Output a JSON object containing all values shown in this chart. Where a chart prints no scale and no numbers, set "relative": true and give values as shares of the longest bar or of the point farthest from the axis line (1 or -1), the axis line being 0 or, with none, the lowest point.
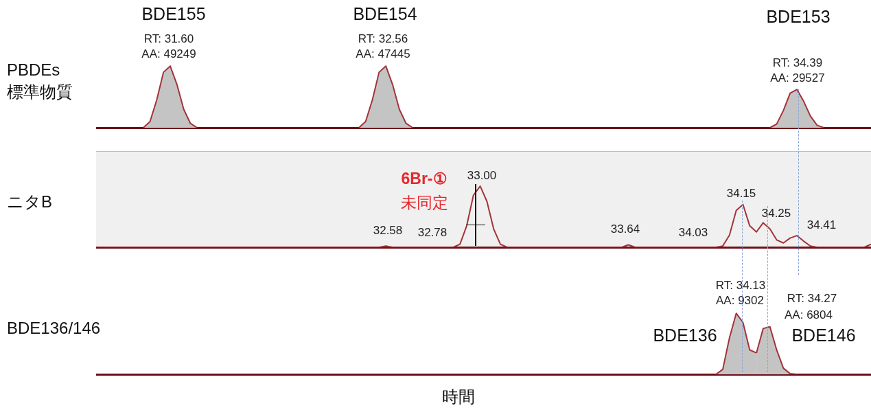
{
  "chart_data": [
    {
      "type": "area",
      "ylabel": "PBDEs\n標準物質",
      "relative": true,
      "categories": [
        null,
        null,
        null,
        null,
        null,
        null,
        null,
        null,
        null,
        null,
        null,
        null,
        null,
        null,
        null,
        null,
        null,
        null,
        null,
        null,
        null,
        null,
        null,
        null,
        null,
        null,
        null,
        null,
        null,
        null,
        null,
        null,
        null,
        null,
        null,
        null,
        null,
        null,
        null,
        null,
        null,
        null,
        null,
        null,
        null,
        null,
        null,
        null,
        null,
        null,
        null,
        null,
        null,
        null,
        null,
        null,
        null,
        null,
        null,
        null,
        null,
        null,
        null,
        null,
        null,
        null,
        null,
        null,
        null,
        null,
        null,
        null,
        null,
        null,
        null,
        null,
        null,
        null,
        null,
        null,
        null,
        null,
        null,
        null,
        null,
        null,
        null,
        null,
        null,
        null,
        null,
        null,
        null,
        null,
        null,
        null,
        null,
        null,
        null,
        null,
        null,
        null,
        null,
        null,
        null,
        null,
        null,
        null,
        null,
        null,
        null,
        null,
        null,
        null,
        null,
        null
      ],
      "series": [
        {
          "color": "#a3333a",
          "values": [
            null,
            null,
            null,
            null,
            null,
            null,
            null,
            0,
            0.1,
            0.45,
            0.9,
            1,
            0.7,
            0.3,
            0.07,
            0,
            null,
            null,
            null,
            null,
            null,
            null,
            null,
            null,
            null,
            null,
            null,
            null,
            null,
            null,
            null,
            null,
            null,
            null,
            null,
            null,
            null,
            null,
            null,
            null,
            null,
            null,
            null,
            null,
            null,
            null,
            null,
            null,
            null,
            null,
            null,
            null,
            null,
            null,
            null,
            null,
            null,
            null,
            null,
            null,
            null,
            null,
            null,
            null,
            null,
            null,
            null,
            null,
            null,
            null,
            null,
            null,
            null,
            null,
            null,
            null,
            null,
            null,
            null,
            null,
            null,
            null,
            null,
            null,
            null,
            null,
            null,
            null,
            null,
            null,
            null,
            null,
            null,
            null,
            null,
            null,
            null,
            null,
            null,
            null,
            null,
            null,
            null,
            null,
            null,
            null,
            null,
            null,
            null,
            null,
            null,
            null,
            null,
            null,
            null,
            null
          ]
        },
        {
          "color": "#a3333a",
          "values": [
            null,
            null,
            null,
            null,
            null,
            null,
            null,
            null,
            null,
            null,
            null,
            null,
            null,
            null,
            null,
            null,
            null,
            null,
            null,
            null,
            null,
            null,
            null,
            null,
            null,
            null,
            null,
            null,
            null,
            null,
            null,
            null,
            null,
            null,
            null,
            null,
            null,
            null,
            null,
            0,
            0.1,
            0.45,
            0.9,
            1,
            0.7,
            0.3,
            0.07,
            0,
            null,
            null,
            null,
            null,
            null,
            null,
            null,
            null,
            null,
            null,
            null,
            null,
            null,
            null,
            null,
            null,
            null,
            null,
            null,
            null,
            null,
            null,
            null,
            null,
            null,
            null,
            null,
            null,
            null,
            null,
            null,
            null,
            null,
            null,
            null,
            null,
            null,
            null,
            null,
            null,
            null,
            null,
            null,
            null,
            null,
            null,
            null,
            null,
            null,
            null,
            null,
            null,
            null,
            null,
            null,
            null,
            null,
            null,
            null,
            null,
            null,
            null,
            null,
            null,
            null,
            null,
            null,
            null
          ]
        },
        {
          "color": "#a3333a",
          "values": [
            null,
            null,
            null,
            null,
            null,
            null,
            null,
            null,
            null,
            null,
            null,
            null,
            null,
            null,
            null,
            null,
            null,
            null,
            null,
            null,
            null,
            null,
            null,
            null,
            null,
            null,
            null,
            null,
            null,
            null,
            null,
            null,
            null,
            null,
            null,
            null,
            null,
            null,
            null,
            null,
            null,
            null,
            null,
            null,
            null,
            null,
            null,
            null,
            null,
            null,
            null,
            null,
            null,
            null,
            null,
            null,
            null,
            null,
            null,
            null,
            null,
            null,
            null,
            null,
            null,
            null,
            null,
            null,
            null,
            null,
            null,
            null,
            null,
            null,
            null,
            null,
            null,
            null,
            null,
            null,
            null,
            null,
            null,
            null,
            null,
            null,
            null,
            null,
            null,
            null,
            null,
            null,
            null,
            null,
            null,
            null,
            null,
            null,
            null,
            null,
            0,
            0.06,
            0.28,
            0.56,
            0.62,
            0.43,
            0.19,
            0.04,
            0,
            null,
            null,
            null,
            null,
            null,
            null,
            null
          ]
        }
      ],
      "annotations": [
        "BDE155",
        "RT: 31.60",
        "AA: 49249",
        "BDE154",
        "RT: 32.56",
        "AA: 47445",
        "BDE153",
        "RT: 34.39",
        "AA: 29527"
      ]
    },
    {
      "type": "line",
      "ylabel": "ニタB",
      "relative": true,
      "categories": [
        null,
        null,
        null,
        null,
        null,
        null,
        null,
        null,
        null,
        null,
        null,
        null,
        null,
        null,
        null,
        null,
        null,
        null,
        null,
        null,
        null,
        null,
        null,
        null,
        null,
        null,
        null,
        null,
        null,
        null,
        null,
        null,
        null,
        null,
        null,
        null,
        null,
        null,
        null,
        null,
        null,
        null,
        null,
        null,
        null,
        null,
        null,
        null,
        null,
        null,
        null,
        null,
        null,
        null,
        null,
        null,
        null,
        null,
        null,
        null,
        null,
        null,
        null,
        null,
        null,
        null,
        null,
        null,
        null,
        null,
        null,
        null,
        null,
        null,
        null,
        null,
        null,
        null,
        null,
        null,
        null,
        null,
        null,
        null,
        null,
        null,
        null,
        null,
        null,
        null,
        null,
        null,
        null,
        null,
        null,
        null,
        null,
        null,
        null,
        null,
        null,
        null,
        null,
        null,
        null,
        null,
        null,
        null,
        null,
        null,
        null,
        null,
        null,
        null,
        null,
        null
      ],
      "series": [
        {
          "color": "#a3333a",
          "values": [
            0,
            0,
            0,
            0,
            0,
            0,
            0,
            0,
            0,
            0,
            0,
            0,
            0,
            0,
            0,
            0,
            0,
            0,
            0,
            0,
            0,
            0,
            0,
            0,
            0,
            0,
            0,
            0,
            0,
            0,
            0,
            0,
            0,
            0,
            0,
            0,
            0,
            0,
            0,
            0,
            0,
            0,
            0,
            0.02,
            0,
            0,
            0,
            0,
            0,
            0,
            0,
            0,
            0,
            0,
            0.05,
            0.35,
            0.85,
            1,
            0.75,
            0.3,
            0.05,
            0,
            0,
            0,
            0,
            0,
            0,
            0,
            0,
            0,
            0,
            0,
            0,
            0,
            0,
            0,
            0,
            0,
            0,
            0.04,
            0,
            0,
            0,
            0,
            0,
            0,
            0,
            0,
            0,
            0,
            0,
            0,
            0,
            0.02,
            0.2,
            0.6,
            0.7,
            0.35,
            0.25,
            0.4,
            0.3,
            0.12,
            0.07,
            0.15,
            0.19,
            0.1,
            0.02,
            0,
            0,
            0,
            0,
            0,
            0,
            0,
            0,
            0.05
          ]
        }
      ],
      "annotations": [
        "6Br-①",
        "未同定",
        "32.58",
        "32.78",
        "33.00",
        "33.64",
        "34.03",
        "34.15",
        "34.25",
        "34.41"
      ]
    },
    {
      "type": "area",
      "ylabel": "BDE136/146",
      "xlabel": "時間",
      "relative": true,
      "categories": [
        null,
        null,
        null,
        null,
        null,
        null,
        null,
        null,
        null,
        null,
        null,
        null,
        null,
        null,
        null,
        null,
        null,
        null,
        null,
        null,
        null,
        null,
        null,
        null,
        null,
        null,
        null,
        null,
        null,
        null,
        null,
        null,
        null,
        null,
        null,
        null,
        null,
        null,
        null,
        null,
        null,
        null,
        null,
        null,
        null,
        null,
        null,
        null,
        null,
        null,
        null,
        null,
        null,
        null,
        null,
        null,
        null,
        null,
        null,
        null,
        null,
        null,
        null,
        null,
        null,
        null,
        null,
        null,
        null,
        null,
        null,
        null,
        null,
        null,
        null,
        null,
        null,
        null,
        null,
        null,
        null,
        null,
        null,
        null,
        null,
        null,
        null,
        null,
        null,
        null,
        null,
        null,
        null,
        null,
        null,
        null,
        null,
        null,
        null,
        null,
        null,
        null,
        null,
        null,
        null,
        null,
        null,
        null,
        null,
        null,
        null,
        null,
        null,
        null,
        null,
        null
      ],
      "series": [
        {
          "color": "#a3333a",
          "values": [
            null,
            null,
            null,
            null,
            null,
            null,
            null,
            null,
            null,
            null,
            null,
            null,
            null,
            null,
            null,
            null,
            null,
            null,
            null,
            null,
            null,
            null,
            null,
            null,
            null,
            null,
            null,
            null,
            null,
            null,
            null,
            null,
            null,
            null,
            null,
            null,
            null,
            null,
            null,
            null,
            null,
            null,
            null,
            null,
            null,
            null,
            null,
            null,
            null,
            null,
            null,
            null,
            null,
            null,
            null,
            null,
            null,
            null,
            null,
            null,
            null,
            null,
            null,
            null,
            null,
            null,
            null,
            null,
            null,
            null,
            null,
            null,
            null,
            null,
            null,
            null,
            null,
            null,
            null,
            null,
            null,
            null,
            null,
            null,
            null,
            null,
            null,
            null,
            null,
            null,
            null,
            null,
            0,
            0.08,
            0.6,
            1,
            0.85,
            0.4,
            0.35,
            null,
            null,
            null,
            null,
            null,
            null,
            null,
            null,
            null,
            null,
            null,
            null,
            null,
            null,
            null,
            null,
            null
          ]
        },
        {
          "color": "#a3333a",
          "values": [
            null,
            null,
            null,
            null,
            null,
            null,
            null,
            null,
            null,
            null,
            null,
            null,
            null,
            null,
            null,
            null,
            null,
            null,
            null,
            null,
            null,
            null,
            null,
            null,
            null,
            null,
            null,
            null,
            null,
            null,
            null,
            null,
            null,
            null,
            null,
            null,
            null,
            null,
            null,
            null,
            null,
            null,
            null,
            null,
            null,
            null,
            null,
            null,
            null,
            null,
            null,
            null,
            null,
            null,
            null,
            null,
            null,
            null,
            null,
            null,
            null,
            null,
            null,
            null,
            null,
            null,
            null,
            null,
            null,
            null,
            null,
            null,
            null,
            null,
            null,
            null,
            null,
            null,
            null,
            null,
            null,
            null,
            null,
            null,
            null,
            null,
            null,
            null,
            null,
            null,
            null,
            null,
            null,
            null,
            null,
            null,
            null,
            null,
            0.35,
            0.75,
            0.78,
            0.4,
            0.1,
            0.01,
            0,
            null,
            null,
            null,
            null,
            null,
            null,
            null,
            null,
            null,
            null,
            null
          ]
        }
      ],
      "annotations": [
        "RT: 34.13",
        "AA: 9302",
        "BDE136",
        "RT: 34.27",
        "AA: 6804",
        "BDE146"
      ]
    }
  ]
}
